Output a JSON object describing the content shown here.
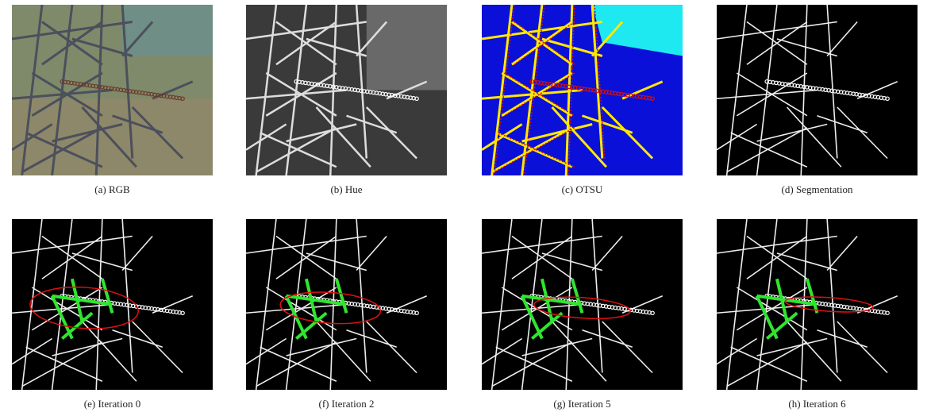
{
  "panels": [
    {
      "caption": "(a) RGB"
    },
    {
      "caption": "(b) Hue"
    },
    {
      "caption": "(c) OTSU"
    },
    {
      "caption": "(d) Segmentation"
    },
    {
      "caption": "(e) Iteration 0"
    },
    {
      "caption": "(f) Iteration 2"
    },
    {
      "caption": "(g) Iteration 5"
    },
    {
      "caption": "(h) Iteration 6"
    }
  ]
}
